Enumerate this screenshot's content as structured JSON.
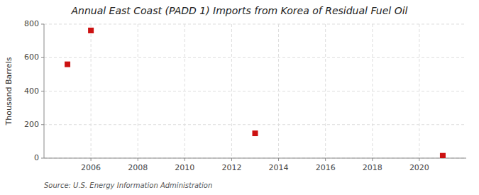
{
  "chart_data": {
    "type": "scatter",
    "title": "Annual East Coast (PADD 1) Imports from Korea of Residual Fuel Oil",
    "y_label": "Thousand Barrels",
    "source": "Source: U.S. Energy Information Administration",
    "x": [
      2005,
      2006,
      2013,
      2021
    ],
    "values": [
      560,
      762,
      148,
      14
    ],
    "color": "#cc1111",
    "marker": "square",
    "xlim": [
      2004,
      2022
    ],
    "ylim": [
      0,
      800
    ],
    "xticks": [
      2006,
      2008,
      2010,
      2012,
      2014,
      2016,
      2018,
      2020
    ],
    "yticks": [
      0,
      200,
      400,
      600,
      800
    ],
    "grid": true
  }
}
